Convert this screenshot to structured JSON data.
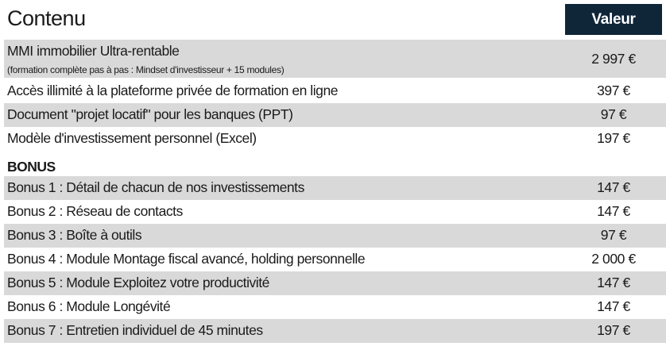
{
  "header": {
    "title": "Contenu",
    "value_label": "Valeur"
  },
  "colors": {
    "header_bg": "#0f2538",
    "row_alt": "#d9d9d9"
  },
  "main_rows": [
    {
      "label": "MMI immobilier Ultra-rentable",
      "sub": "(formation complète pas à pas : Mindset d'investisseur + 15 modules)",
      "value": "2 997 €"
    },
    {
      "label": "Accès illimité à la plateforme privée de formation en ligne",
      "value": "397 €"
    },
    {
      "label": "Document \"projet locatif\" pour les banques (PPT)",
      "value": "97 €"
    },
    {
      "label": "Modèle d'investissement personnel (Excel)",
      "value": "197 €"
    }
  ],
  "bonus_heading": "BONUS",
  "bonus_rows": [
    {
      "label": "Bonus 1 : Détail de chacun de nos investissements",
      "value": "147 €"
    },
    {
      "label": "Bonus 2 : Réseau de contacts",
      "value": "147 €"
    },
    {
      "label": "Bonus 3 : Boîte à outils",
      "value": "97 €"
    },
    {
      "label": "Bonus 4 : Module Montage fiscal avancé, holding personnelle",
      "value": "2 000 €"
    },
    {
      "label": "Bonus 5 : Module Exploitez votre productivité",
      "value": "147 €"
    },
    {
      "label": "Bonus 6 : Module Longévité",
      "value": "147 €"
    },
    {
      "label": "Bonus 7 : Entretien individuel de 45 minutes",
      "value": "197 €"
    }
  ]
}
